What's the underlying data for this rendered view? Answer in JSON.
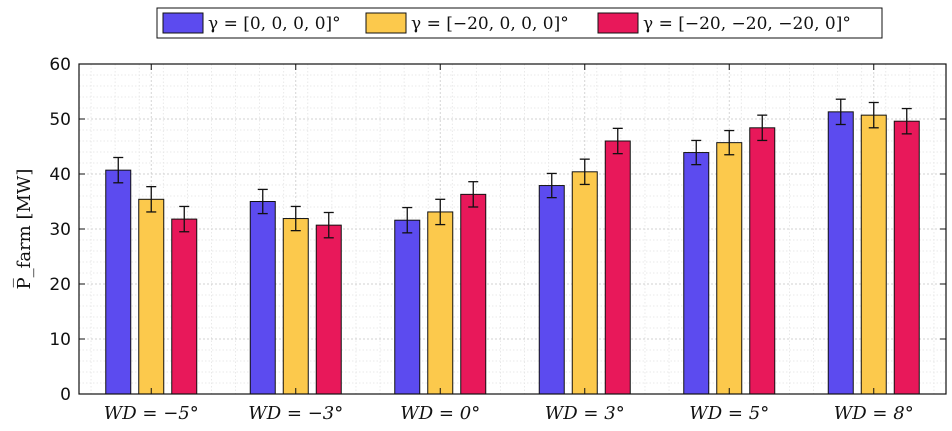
{
  "chart_data": {
    "type": "bar",
    "categories": [
      "WD = −5°",
      "WD = −3°",
      "WD = 0°",
      "WD = 3°",
      "WD = 5°",
      "WD = 8°"
    ],
    "series": [
      {
        "name": "γ = [0, 0, 0, 0]°",
        "color": "#5c4bef",
        "values": [
          40.7,
          35.0,
          31.6,
          37.9,
          43.9,
          51.3
        ],
        "errors": [
          2.3,
          2.2,
          2.3,
          2.2,
          2.2,
          2.3
        ]
      },
      {
        "name": "γ = [−20, 0, 0, 0]°",
        "color": "#fcc94c",
        "values": [
          35.4,
          31.9,
          33.1,
          40.4,
          45.7,
          50.7
        ],
        "errors": [
          2.3,
          2.2,
          2.3,
          2.3,
          2.2,
          2.3
        ]
      },
      {
        "name": "γ = [−20, −20, −20, 0]°",
        "color": "#e8185a",
        "values": [
          31.8,
          30.7,
          36.3,
          46.0,
          48.4,
          49.6
        ],
        "errors": [
          2.3,
          2.3,
          2.3,
          2.3,
          2.3,
          2.3
        ]
      }
    ],
    "ylabel": "P̅_farm [MW]",
    "xlabel": "",
    "ylim": [
      0,
      60
    ],
    "yticks": [
      0,
      10,
      20,
      30,
      40,
      50,
      60
    ],
    "grid": true,
    "legend_position": "top-center"
  }
}
